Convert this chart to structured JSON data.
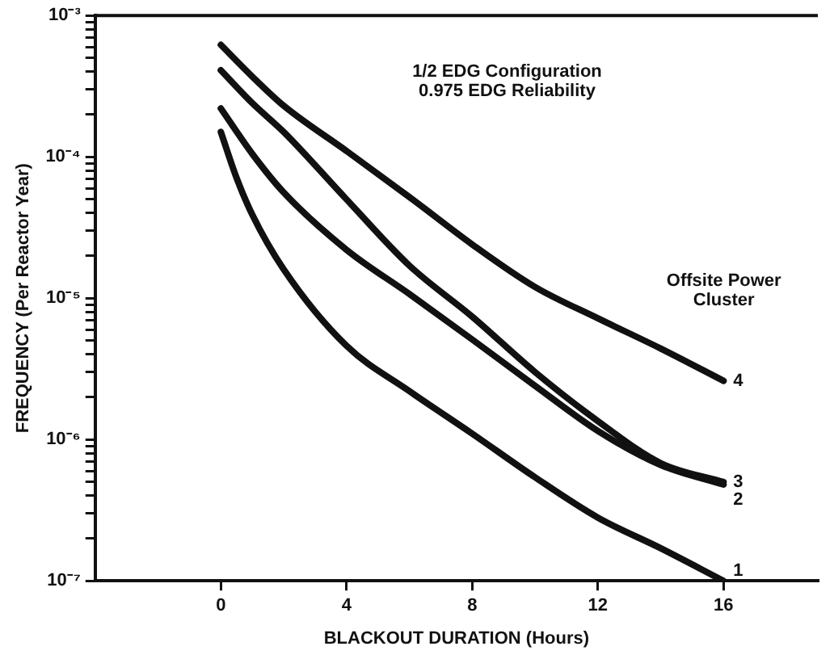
{
  "chart_data": {
    "type": "line",
    "xlabel": "BLACKOUT DURATION (Hours)",
    "ylabel": "FREQUENCY (Per Reactor Year)",
    "log": "y",
    "xlim": [
      -4,
      19
    ],
    "xticks": [
      0,
      4,
      8,
      12,
      16
    ],
    "ylim": [
      1e-07,
      0.001
    ],
    "yticks": [
      {
        "value": 1e-07,
        "label": "10⁻⁷"
      },
      {
        "value": 2e-07,
        "label": null
      },
      {
        "value": 3e-07,
        "label": null
      },
      {
        "value": 4e-07,
        "label": null
      },
      {
        "value": 5e-07,
        "label": null
      },
      {
        "value": 6e-07,
        "label": null
      },
      {
        "value": 7e-07,
        "label": null
      },
      {
        "value": 8e-07,
        "label": null
      },
      {
        "value": 9e-07,
        "label": null
      },
      {
        "value": 1e-06,
        "label": "10⁻⁶"
      },
      {
        "value": 2e-06,
        "label": null
      },
      {
        "value": 3e-06,
        "label": null
      },
      {
        "value": 4e-06,
        "label": null
      },
      {
        "value": 5e-06,
        "label": null
      },
      {
        "value": 6e-06,
        "label": null
      },
      {
        "value": 7e-06,
        "label": null
      },
      {
        "value": 8e-06,
        "label": null
      },
      {
        "value": 9e-06,
        "label": null
      },
      {
        "value": 1e-05,
        "label": "10⁻⁵"
      },
      {
        "value": 2e-05,
        "label": null
      },
      {
        "value": 3e-05,
        "label": null
      },
      {
        "value": 4e-05,
        "label": null
      },
      {
        "value": 5e-05,
        "label": null
      },
      {
        "value": 6e-05,
        "label": null
      },
      {
        "value": 7e-05,
        "label": null
      },
      {
        "value": 8e-05,
        "label": null
      },
      {
        "value": 9e-05,
        "label": null
      },
      {
        "value": 0.0001,
        "label": "10⁻⁴"
      },
      {
        "value": 0.0002,
        "label": null
      },
      {
        "value": 0.0003,
        "label": null
      },
      {
        "value": 0.0004,
        "label": null
      },
      {
        "value": 0.0005,
        "label": null
      },
      {
        "value": 0.0006,
        "label": null
      },
      {
        "value": 0.0007,
        "label": null
      },
      {
        "value": 0.0008,
        "label": null
      },
      {
        "value": 0.0009,
        "label": null
      },
      {
        "value": 0.001,
        "label": "10⁻³"
      }
    ],
    "grid": false,
    "legend": false,
    "marker": "none",
    "line_style": "solid",
    "annotations": [
      "1/2 EDG Configuration\n0.975 EDG Reliability",
      "Offsite Power\nCluster"
    ],
    "series": [
      {
        "name": "4",
        "color": "#111111",
        "x": [
          0,
          1,
          2,
          4,
          6,
          8,
          10,
          12,
          14,
          16
        ],
        "values": [
          0.00062,
          0.00037,
          0.00023,
          0.00011,
          5.2e-05,
          2.4e-05,
          1.2e-05,
          7.2e-06,
          4.4e-06,
          2.6e-06
        ]
      },
      {
        "name": "3",
        "color": "#111111",
        "x": [
          0,
          1,
          2,
          4,
          6,
          8,
          10,
          12,
          14,
          16
        ],
        "values": [
          0.00041,
          0.00024,
          0.00015,
          5e-05,
          1.7e-05,
          7.4e-06,
          3e-06,
          1.35e-06,
          6.8e-07,
          5e-07
        ]
      },
      {
        "name": "2",
        "color": "#111111",
        "x": [
          0,
          1,
          2,
          4,
          6,
          8,
          10,
          12,
          14,
          16
        ],
        "values": [
          0.00022,
          0.000105,
          5.6e-05,
          2.2e-05,
          1.07e-05,
          5.1e-06,
          2.4e-06,
          1.15e-06,
          6.6e-07,
          4.8e-07
        ]
      },
      {
        "name": "1",
        "color": "#111111",
        "x": [
          0,
          0.5,
          1,
          2,
          4,
          6,
          8,
          10,
          12,
          14,
          16
        ],
        "values": [
          0.00015,
          7.1e-05,
          3.9e-05,
          1.6e-05,
          4.6e-06,
          2.2e-06,
          1.1e-06,
          5.4e-07,
          2.8e-07,
          1.7e-07,
          1e-07
        ]
      }
    ]
  }
}
